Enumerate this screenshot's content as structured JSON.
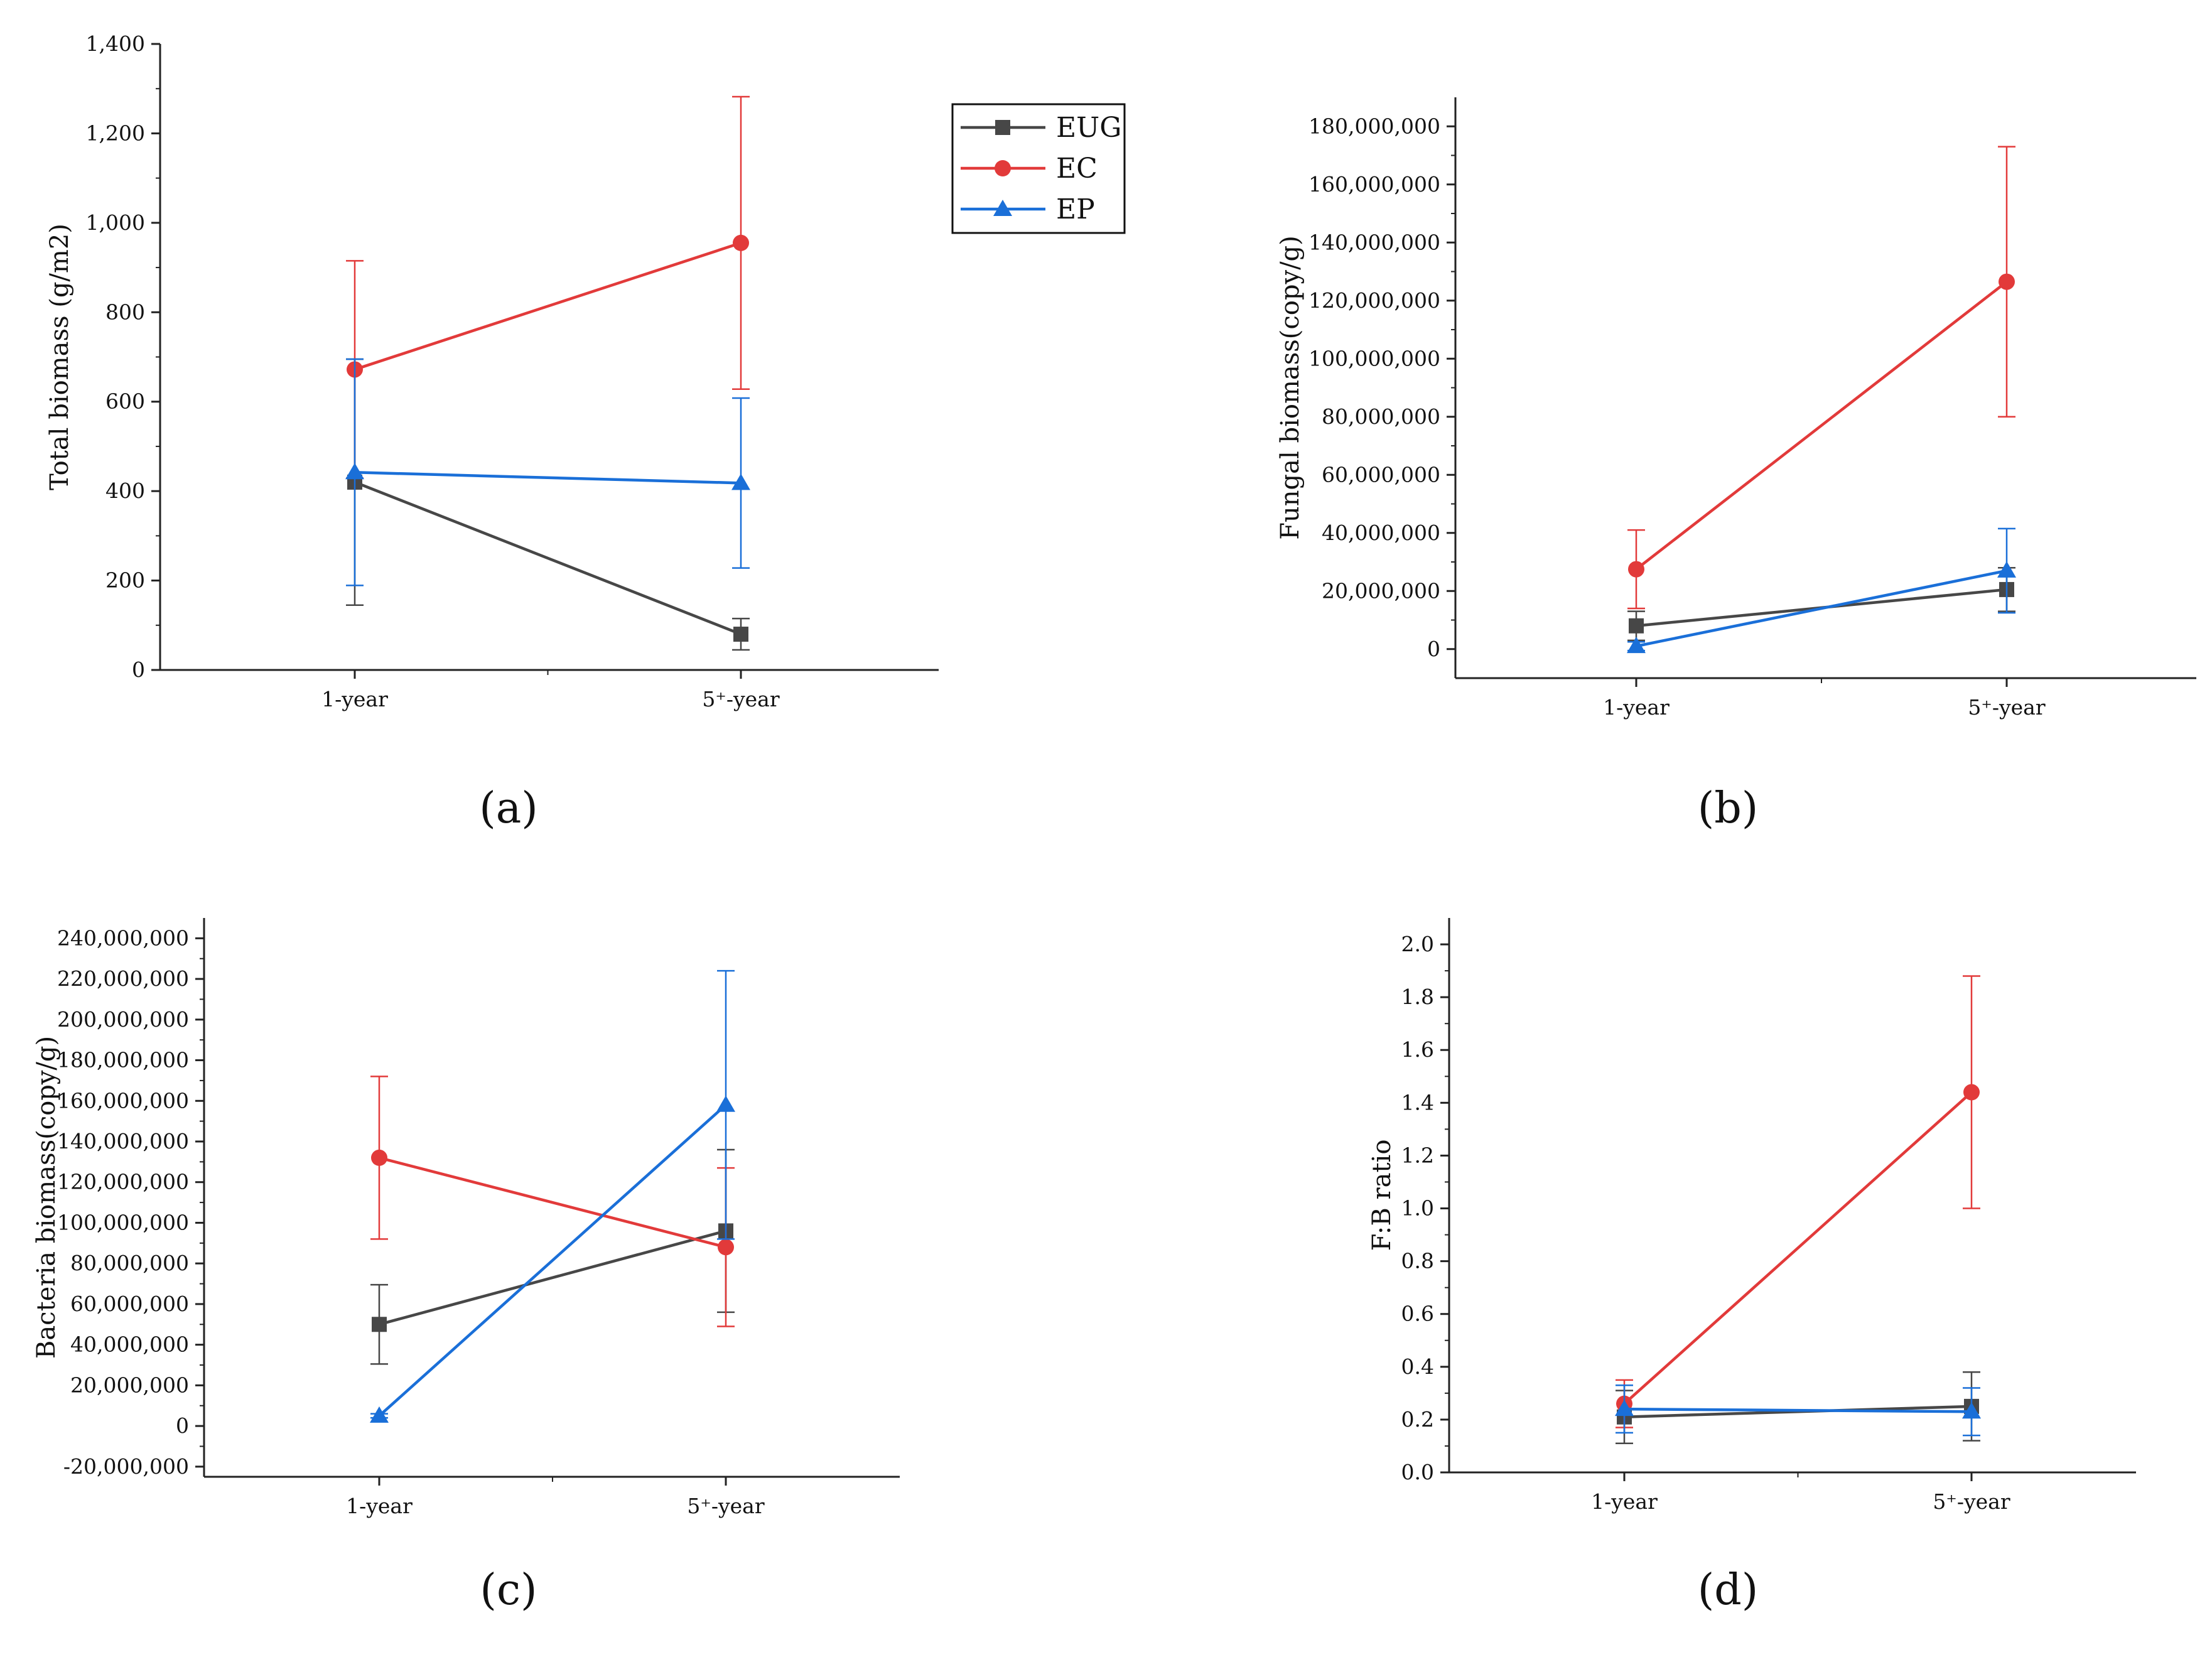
{
  "colors": {
    "EUG": "#474747",
    "EC": "#e23a3a",
    "EP": "#1a6fd8"
  },
  "legend": [
    {
      "name": "EUG",
      "marker": "square"
    },
    {
      "name": "EC",
      "marker": "circle"
    },
    {
      "name": "EP",
      "marker": "triangle"
    }
  ],
  "chart_data": [
    {
      "type": "line",
      "panel_label": "(a)",
      "ylabel": "Total biomass (g/m2)",
      "categories": [
        "1-year",
        "5⁺-year"
      ],
      "ylim": [
        0,
        1400
      ],
      "yticks": [
        0,
        200,
        400,
        600,
        800,
        1000,
        1200,
        1400
      ],
      "ytick_labels": [
        "0",
        "200",
        "400",
        "600",
        "800",
        "1,000",
        "1,200",
        "1,400"
      ],
      "series": [
        {
          "name": "EUG",
          "values": [
            420,
            80
          ],
          "errors": [
            275,
            35
          ]
        },
        {
          "name": "EC",
          "values": [
            672,
            955
          ],
          "errors": [
            243,
            327
          ]
        },
        {
          "name": "EP",
          "values": [
            442,
            418
          ],
          "errors": [
            253,
            190
          ]
        }
      ]
    },
    {
      "type": "line",
      "panel_label": "(b)",
      "ylabel": "Fungal biomass(copy/g)",
      "categories": [
        "1-year",
        "5⁺-year"
      ],
      "ylim": [
        -10000000,
        190000000
      ],
      "yticks": [
        0,
        20000000,
        40000000,
        60000000,
        80000000,
        100000000,
        120000000,
        140000000,
        160000000,
        180000000
      ],
      "ytick_labels": [
        "0",
        "20,000,000",
        "40,000,000",
        "60,000,000",
        "80,000,000",
        "100,000,000",
        "120,000,000",
        "140,000,000",
        "160,000,000",
        "180,000,000"
      ],
      "series": [
        {
          "name": "EUG",
          "values": [
            8000000,
            20500000
          ],
          "errors": [
            5000000,
            7500000
          ]
        },
        {
          "name": "EC",
          "values": [
            27500000,
            126500000
          ],
          "errors": [
            13500000,
            46500000
          ]
        },
        {
          "name": "EP",
          "values": [
            1000000,
            27000000
          ],
          "errors": [
            1500000,
            14500000
          ]
        }
      ]
    },
    {
      "type": "line",
      "panel_label": "(c)",
      "ylabel": "Bacteria biomass(copy/g)",
      "categories": [
        "1-year",
        "5⁺-year"
      ],
      "ylim": [
        -25000000,
        250000000
      ],
      "yticks": [
        -20000000,
        0,
        20000000,
        40000000,
        60000000,
        80000000,
        100000000,
        120000000,
        140000000,
        160000000,
        180000000,
        200000000,
        220000000,
        240000000
      ],
      "ytick_labels": [
        "-20,000,000",
        "0",
        "20,000,000",
        "40,000,000",
        "60,000,000",
        "80,000,000",
        "100,000,000",
        "120,000,000",
        "140,000,000",
        "160,000,000",
        "180,000,000",
        "200,000,000",
        "220,000,000",
        "240,000,000"
      ],
      "series": [
        {
          "name": "EUG",
          "values": [
            50000000,
            96000000
          ],
          "errors": [
            19500000,
            40000000
          ]
        },
        {
          "name": "EC",
          "values": [
            132000000,
            88000000
          ],
          "errors": [
            40000000,
            39000000
          ]
        },
        {
          "name": "EP",
          "values": [
            5000000,
            158000000
          ],
          "errors": [
            1000000,
            66000000
          ]
        }
      ]
    },
    {
      "type": "line",
      "panel_label": "(d)",
      "ylabel": "F:B ratio",
      "categories": [
        "1-year",
        "5⁺-year"
      ],
      "ylim": [
        0,
        2.1
      ],
      "yticks": [
        0,
        0.2,
        0.4,
        0.6,
        0.8,
        1.0,
        1.2,
        1.4,
        1.6,
        1.8,
        2.0
      ],
      "ytick_labels": [
        "0.0",
        "0.2",
        "0.4",
        "0.6",
        "0.8",
        "1.0",
        "1.2",
        "1.4",
        "1.6",
        "1.8",
        "2.0"
      ],
      "series": [
        {
          "name": "EUG",
          "values": [
            0.21,
            0.25
          ],
          "errors": [
            0.1,
            0.13
          ]
        },
        {
          "name": "EC",
          "values": [
            0.26,
            1.44
          ],
          "errors": [
            0.09,
            0.44
          ]
        },
        {
          "name": "EP",
          "values": [
            0.24,
            0.23
          ],
          "errors": [
            0.09,
            0.09
          ]
        }
      ]
    }
  ]
}
